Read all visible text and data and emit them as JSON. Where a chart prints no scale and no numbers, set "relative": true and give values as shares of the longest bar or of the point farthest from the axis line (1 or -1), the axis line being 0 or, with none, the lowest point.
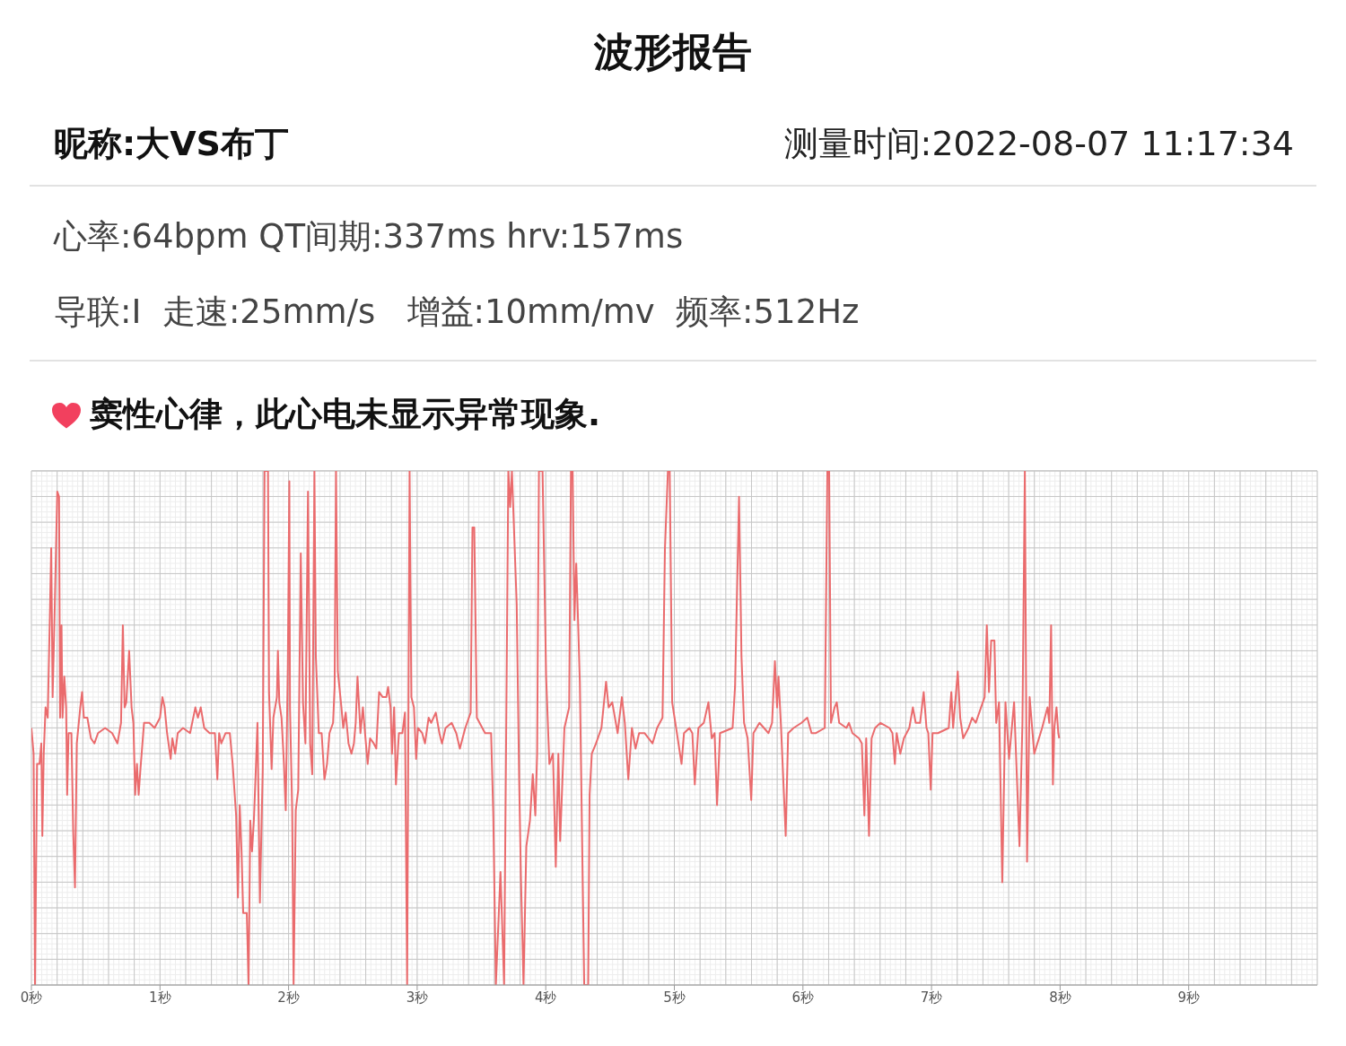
{
  "chart_data": {
    "type": "line",
    "title": "波形报告",
    "annotations": [
      "昵称:大VS布丁",
      "测量时间:2022-08-07 11:17:34",
      "心率:64bpm QT间期:337ms hrv:157ms",
      "导联:I  走速:25mm/s   增益:10mm/mv  频率:512Hz",
      "窦性心律，此心电未显示异常现象."
    ],
    "relative": true,
    "grid": true,
    "color": "#ea6b6d",
    "xlim": [
      0,
      10
    ],
    "xticks": [
      {
        "value": 0,
        "label": "0秒"
      },
      {
        "value": 1,
        "label": "1秒"
      },
      {
        "value": 2,
        "label": "2秒"
      },
      {
        "value": 3,
        "label": "3秒"
      },
      {
        "value": 4,
        "label": "4秒"
      },
      {
        "value": 5,
        "label": "5秒"
      },
      {
        "value": 6,
        "label": "6秒"
      },
      {
        "value": 7,
        "label": "7秒"
      },
      {
        "value": 8,
        "label": "8秒"
      },
      {
        "value": 9,
        "label": "9秒"
      }
    ],
    "x": [
      0.0,
      0.017,
      0.028,
      0.044,
      0.063,
      0.077,
      0.085,
      0.096,
      0.11,
      0.127,
      0.146,
      0.154,
      0.165,
      0.182,
      0.201,
      0.215,
      0.223,
      0.234,
      0.242,
      0.256,
      0.27,
      0.278,
      0.289,
      0.311,
      0.325,
      0.339,
      0.353,
      0.38,
      0.394,
      0.408,
      0.435,
      0.463,
      0.49,
      0.518,
      0.573,
      0.628,
      0.669,
      0.697,
      0.711,
      0.725,
      0.738,
      0.76,
      0.779,
      0.793,
      0.807,
      0.821,
      0.834,
      0.848,
      0.876,
      0.917,
      0.958,
      1.0,
      1.019,
      1.036,
      1.055,
      1.083,
      1.096,
      1.118,
      1.138,
      1.179,
      1.234,
      1.275,
      1.295,
      1.317,
      1.344,
      1.386,
      1.427,
      1.446,
      1.46,
      1.477,
      1.51,
      1.543,
      1.565,
      1.592,
      1.606,
      1.62,
      1.634,
      1.647,
      1.675,
      1.689,
      1.702,
      1.716,
      1.73,
      1.744,
      1.758,
      1.777,
      1.799,
      1.813,
      1.84,
      1.848,
      1.868,
      1.882,
      1.909,
      1.917,
      1.928,
      1.945,
      1.964,
      1.978,
      1.994,
      2.006,
      2.011,
      2.028,
      2.039,
      2.056,
      2.075,
      2.095,
      2.112,
      2.131,
      2.151,
      2.168,
      2.184,
      2.201,
      2.212,
      2.235,
      2.257,
      2.279,
      2.299,
      2.318,
      2.346,
      2.358,
      2.369,
      2.383,
      2.411,
      2.425,
      2.444,
      2.466,
      2.489,
      2.508,
      2.522,
      2.536,
      2.559,
      2.578,
      2.598,
      2.615,
      2.634,
      2.662,
      2.682,
      2.704,
      2.732,
      2.76,
      2.774,
      2.793,
      2.804,
      2.821,
      2.835,
      2.858,
      2.885,
      2.905,
      2.922,
      2.941,
      2.955,
      2.975,
      2.992,
      3.006,
      3.039,
      3.061,
      3.089,
      3.109,
      3.145,
      3.173,
      3.193,
      3.221,
      3.268,
      3.304,
      3.332,
      3.374,
      3.416,
      3.43,
      3.444,
      3.464,
      3.528,
      3.575,
      3.592,
      3.612,
      3.648,
      3.676,
      3.709,
      3.723,
      3.737,
      3.774,
      3.793,
      3.807,
      3.827,
      3.849,
      3.877,
      3.899,
      3.919,
      3.933,
      3.947,
      3.975,
      4.003,
      4.028,
      4.056,
      4.078,
      4.098,
      4.112,
      4.145,
      4.182,
      4.196,
      4.209,
      4.223,
      4.237,
      4.251,
      4.265,
      4.299,
      4.33,
      4.341,
      4.358,
      4.391,
      4.433,
      4.469,
      4.489,
      4.517,
      4.559,
      4.592,
      4.615,
      4.642,
      4.67,
      4.698,
      4.726,
      4.768,
      4.83,
      4.866,
      4.908,
      4.927,
      4.95,
      4.964,
      4.983,
      5.02,
      5.056,
      5.075,
      5.117,
      5.14,
      5.159,
      5.187,
      5.229,
      5.265,
      5.291,
      5.313,
      5.332,
      5.355,
      5.453,
      5.472,
      5.503,
      5.522,
      5.542,
      5.57,
      5.598,
      5.615,
      5.662,
      5.732,
      5.76,
      5.782,
      5.799,
      5.81,
      5.83,
      5.866,
      5.885,
      5.927,
      5.989,
      6.034,
      6.067,
      6.101,
      6.17,
      6.19,
      6.204,
      6.218,
      6.246,
      6.263,
      6.282,
      6.338,
      6.358,
      6.385,
      6.436,
      6.458,
      6.478,
      6.492,
      6.514,
      6.534,
      6.561,
      6.603,
      6.673,
      6.696,
      6.715,
      6.729,
      6.757,
      6.785,
      6.827,
      6.855,
      6.877,
      6.911,
      6.939,
      6.961,
      6.975,
      6.994,
      7.008,
      7.05,
      7.134,
      7.154,
      7.168,
      7.204,
      7.223,
      7.246,
      7.288,
      7.316,
      7.344,
      7.385,
      7.413,
      7.43,
      7.447,
      7.464,
      7.489,
      7.503,
      7.525,
      7.55,
      7.575,
      7.603,
      7.642,
      7.684,
      7.707,
      7.726,
      7.743,
      7.763,
      7.799,
      7.86,
      7.902,
      7.916,
      7.93,
      7.944,
      7.955,
      7.972,
      7.986,
      7.993
    ],
    "values": [
      0.5,
      0.45,
      0.0,
      0.43,
      0.43,
      0.47,
      0.29,
      0.45,
      0.54,
      0.52,
      0.75,
      0.85,
      0.56,
      0.74,
      0.96,
      0.95,
      0.52,
      0.7,
      0.52,
      0.6,
      0.54,
      0.37,
      0.49,
      0.49,
      0.3,
      0.19,
      0.47,
      0.54,
      0.57,
      0.52,
      0.52,
      0.48,
      0.47,
      0.49,
      0.5,
      0.49,
      0.47,
      0.51,
      0.7,
      0.54,
      0.55,
      0.65,
      0.54,
      0.51,
      0.37,
      0.43,
      0.37,
      0.42,
      0.51,
      0.51,
      0.5,
      0.52,
      0.56,
      0.54,
      0.49,
      0.44,
      0.48,
      0.45,
      0.49,
      0.5,
      0.49,
      0.54,
      0.52,
      0.54,
      0.5,
      0.49,
      0.49,
      0.4,
      0.49,
      0.47,
      0.49,
      0.49,
      0.43,
      0.33,
      0.17,
      0.35,
      0.26,
      0.14,
      0.14,
      0.0,
      0.32,
      0.26,
      0.32,
      0.41,
      0.51,
      0.16,
      0.42,
      1.0,
      1.0,
      0.57,
      0.42,
      0.52,
      0.56,
      0.65,
      0.55,
      0.52,
      0.43,
      0.34,
      0.62,
      0.98,
      0.54,
      0.34,
      0.0,
      0.34,
      0.38,
      0.84,
      0.55,
      0.47,
      0.96,
      0.47,
      0.41,
      1.0,
      0.64,
      0.49,
      0.49,
      0.4,
      0.43,
      0.49,
      0.51,
      0.58,
      1.0,
      0.61,
      0.54,
      0.5,
      0.53,
      0.47,
      0.45,
      0.47,
      0.51,
      0.6,
      0.49,
      0.54,
      0.48,
      0.43,
      0.48,
      0.47,
      0.46,
      0.57,
      0.56,
      0.56,
      0.58,
      0.54,
      0.45,
      0.54,
      0.39,
      0.49,
      0.49,
      0.53,
      0.0,
      1.0,
      0.56,
      0.54,
      0.44,
      0.5,
      0.49,
      0.47,
      0.52,
      0.51,
      0.53,
      0.49,
      0.47,
      0.5,
      0.51,
      0.49,
      0.46,
      0.5,
      0.53,
      0.89,
      0.89,
      0.52,
      0.49,
      0.49,
      0.33,
      0.0,
      0.22,
      0.0,
      1.0,
      0.93,
      1.0,
      0.74,
      0.4,
      0.21,
      0.0,
      0.27,
      0.32,
      0.41,
      0.33,
      0.45,
      1.0,
      1.0,
      0.6,
      0.43,
      0.45,
      0.23,
      0.45,
      0.28,
      0.5,
      0.54,
      1.0,
      1.0,
      0.71,
      0.82,
      0.71,
      0.59,
      0.0,
      0.0,
      0.37,
      0.45,
      0.47,
      0.5,
      0.59,
      0.54,
      0.55,
      0.49,
      0.56,
      0.51,
      0.4,
      0.5,
      0.46,
      0.49,
      0.49,
      0.47,
      0.5,
      0.52,
      0.85,
      1.0,
      1.0,
      0.55,
      0.49,
      0.43,
      0.49,
      0.5,
      0.49,
      0.39,
      0.5,
      0.51,
      0.55,
      0.48,
      0.49,
      0.35,
      0.49,
      0.5,
      0.58,
      0.95,
      0.64,
      0.51,
      0.48,
      0.36,
      0.49,
      0.51,
      0.49,
      0.51,
      0.63,
      0.54,
      0.6,
      0.5,
      0.29,
      0.49,
      0.5,
      0.51,
      0.52,
      0.49,
      0.49,
      0.5,
      1.0,
      1.0,
      0.51,
      0.54,
      0.55,
      0.51,
      0.5,
      0.51,
      0.49,
      0.48,
      0.47,
      0.33,
      0.48,
      0.29,
      0.48,
      0.5,
      0.51,
      0.5,
      0.49,
      0.43,
      0.49,
      0.45,
      0.48,
      0.5,
      0.54,
      0.51,
      0.51,
      0.57,
      0.5,
      0.49,
      0.38,
      0.49,
      0.49,
      0.5,
      0.57,
      0.5,
      0.61,
      0.52,
      0.48,
      0.5,
      0.52,
      0.51,
      0.54,
      0.56,
      0.7,
      0.57,
      0.67,
      0.67,
      0.51,
      0.55,
      0.2,
      0.55,
      0.44,
      0.55,
      0.27,
      0.51,
      1.0,
      0.24,
      0.56,
      0.45,
      0.5,
      0.54,
      0.51,
      0.7,
      0.39,
      0.5,
      0.54,
      0.49,
      0.48
    ]
  }
}
